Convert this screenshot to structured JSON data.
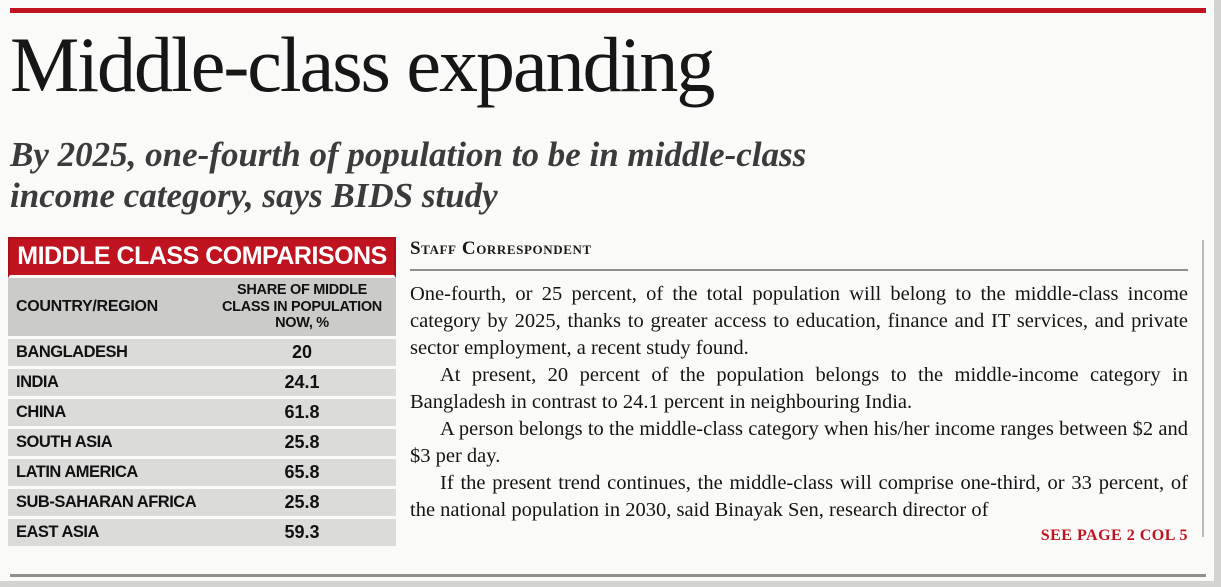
{
  "page": {
    "headline": "Middle-class expanding",
    "subhead": "By 2025, one-fourth of population to be in middle-class\nincome category, says BIDS study"
  },
  "table": {
    "title": "MIDDLE CLASS COMPARISONS",
    "col1_header": "COUNTRY/REGION",
    "col2_header": "SHARE OF MIDDLE CLASS IN POPULATION NOW, %",
    "rows": [
      {
        "country": "BANGLADESH",
        "value": "20"
      },
      {
        "country": "INDIA",
        "value": "24.1"
      },
      {
        "country": "CHINA",
        "value": "61.8"
      },
      {
        "country": "SOUTH ASIA",
        "value": "25.8"
      },
      {
        "country": "LATIN AMERICA",
        "value": "65.8"
      },
      {
        "country": "SUB-SAHARAN AFRICA",
        "value": "25.8"
      },
      {
        "country": "EAST ASIA",
        "value": "59.3"
      }
    ]
  },
  "article": {
    "byline": "Staff Correspondent",
    "paragraphs": [
      "One-fourth, or 25 percent, of the total population will belong to the middle-class income category by 2025, thanks to greater access to education, finance and IT services, and private sector employment, a recent study found.",
      "At present, 20 percent of the population belongs to the middle-income category in Bangladesh in contrast to 24.1 percent in neighbouring India.",
      "A person belongs to the middle-class category when his/her income ranges between $2 and $3 per day.",
      "If the present trend continues, the middle-class will comprise one-third, or 33 percent, of the national population in 2030, said Binayak Sen, research director of"
    ],
    "continuation": "SEE PAGE 2 COL 5"
  },
  "colors": {
    "accent_red": "#c01320",
    "row_gray": "#dbdbd9",
    "header_gray": "#cbcbc9"
  }
}
